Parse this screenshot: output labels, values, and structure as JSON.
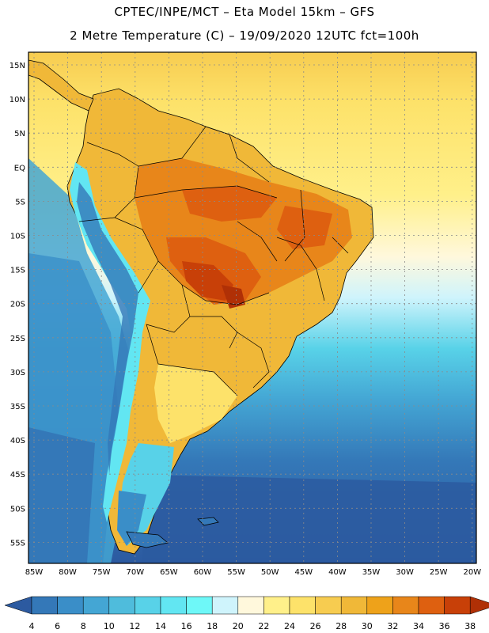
{
  "header": {
    "line1": "CPTEC/INPE/MCT –  Eta Model 15km – GFS",
    "line2": "2 Metre Temperature (C) – 19/09/2020 12UTC fct=100h"
  },
  "map": {
    "lat_labels": [
      "15N",
      "10N",
      "5N",
      "EQ",
      "5S",
      "10S",
      "15S",
      "20S",
      "25S",
      "30S",
      "35S",
      "40S",
      "45S",
      "50S",
      "55S"
    ],
    "lon_labels": [
      "85W",
      "80W",
      "75W",
      "70W",
      "65W",
      "60W",
      "55W",
      "50W",
      "45W",
      "40W",
      "35W",
      "30W",
      "25W",
      "20W"
    ]
  },
  "colorbar": {
    "ticks": [
      "4",
      "6",
      "8",
      "10",
      "12",
      "14",
      "16",
      "18",
      "20",
      "22",
      "24",
      "26",
      "28",
      "30",
      "32",
      "34",
      "36",
      "38"
    ],
    "colors": [
      "#2c5aa0",
      "#3478b8",
      "#3a8ec8",
      "#44a6d4",
      "#4fbcdc",
      "#58d2e8",
      "#62e6f2",
      "#6ef8f8",
      "#cff4fc",
      "#fff8dc",
      "#fff08a",
      "#fde26a",
      "#f7cc50",
      "#f0b838",
      "#eea21a",
      "#e8861a",
      "#de6010",
      "#c84008",
      "#b03006"
    ]
  }
}
